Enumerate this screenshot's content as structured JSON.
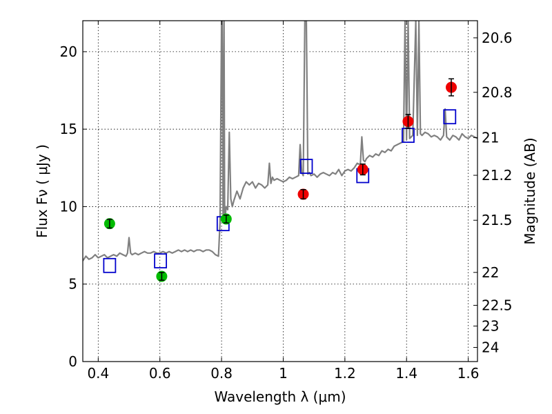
{
  "chart_data": {
    "type": "scatter",
    "xlabel": "Wavelength  λ (μm)",
    "ylabel_left": "Flux  Fν  ( μJy )",
    "ylabel_right": "Magnitude (AB)",
    "xlim": [
      0.35,
      1.63
    ],
    "ylim": [
      0,
      22
    ],
    "grid": true,
    "x_ticks": [
      0.4,
      0.6,
      0.8,
      1.0,
      1.2,
      1.4,
      1.6
    ],
    "x_tick_labels": [
      "0.4",
      "0.6",
      "0.8",
      "1",
      "1.2",
      "1.4",
      "1.6"
    ],
    "y_ticks": [
      0,
      5,
      10,
      15,
      20
    ],
    "y_tick_labels": [
      "0",
      "5",
      "10",
      "15",
      "20"
    ],
    "right_ticks": [
      {
        "label": "20.6",
        "value": 20.6
      },
      {
        "label": "20.8",
        "value": 20.8
      },
      {
        "label": "21",
        "value": 21.0
      },
      {
        "label": "21.2",
        "value": 21.2
      },
      {
        "label": "21.5",
        "value": 21.5
      },
      {
        "label": "22",
        "value": 22.0
      },
      {
        "label": "22.5",
        "value": 22.5
      },
      {
        "label": "23",
        "value": 23.0
      },
      {
        "label": "24",
        "value": 24.0
      }
    ],
    "series": [
      {
        "kind": "line",
        "color": "#808080",
        "x": [
          0.35,
          0.36,
          0.37,
          0.38,
          0.39,
          0.4,
          0.41,
          0.42,
          0.43,
          0.44,
          0.45,
          0.46,
          0.47,
          0.48,
          0.49,
          0.495,
          0.5,
          0.505,
          0.51,
          0.52,
          0.53,
          0.54,
          0.55,
          0.56,
          0.57,
          0.58,
          0.59,
          0.6,
          0.61,
          0.62,
          0.63,
          0.64,
          0.65,
          0.66,
          0.67,
          0.68,
          0.69,
          0.7,
          0.71,
          0.72,
          0.73,
          0.74,
          0.75,
          0.76,
          0.77,
          0.78,
          0.79,
          0.795,
          0.8,
          0.802,
          0.805,
          0.808,
          0.81,
          0.815,
          0.82,
          0.825,
          0.83,
          0.835,
          0.84,
          0.85,
          0.86,
          0.87,
          0.88,
          0.89,
          0.9,
          0.91,
          0.92,
          0.93,
          0.94,
          0.95,
          0.955,
          0.96,
          0.965,
          0.97,
          0.98,
          0.99,
          1.0,
          1.01,
          1.02,
          1.03,
          1.04,
          1.05,
          1.055,
          1.06,
          1.065,
          1.07,
          1.075,
          1.08,
          1.085,
          1.09,
          1.1,
          1.11,
          1.12,
          1.13,
          1.14,
          1.15,
          1.16,
          1.17,
          1.18,
          1.19,
          1.2,
          1.21,
          1.22,
          1.23,
          1.24,
          1.25,
          1.255,
          1.26,
          1.265,
          1.27,
          1.28,
          1.29,
          1.3,
          1.31,
          1.32,
          1.33,
          1.34,
          1.35,
          1.36,
          1.37,
          1.38,
          1.39,
          1.395,
          1.4,
          1.405,
          1.41,
          1.42,
          1.43,
          1.435,
          1.44,
          1.445,
          1.45,
          1.46,
          1.47,
          1.48,
          1.49,
          1.5,
          1.51,
          1.52,
          1.525,
          1.53,
          1.535,
          1.54,
          1.55,
          1.56,
          1.57,
          1.58,
          1.59,
          1.6,
          1.61,
          1.62,
          1.63
        ],
        "y": [
          6.5,
          6.8,
          6.6,
          6.7,
          6.9,
          6.7,
          6.8,
          6.9,
          6.7,
          6.8,
          6.9,
          6.8,
          7.0,
          6.9,
          6.8,
          7.0,
          8.0,
          7.0,
          6.9,
          7.0,
          6.9,
          7.0,
          7.1,
          7.0,
          7.0,
          7.1,
          7.0,
          7.0,
          7.1,
          7.0,
          7.1,
          7.0,
          7.1,
          7.2,
          7.1,
          7.2,
          7.1,
          7.2,
          7.1,
          7.2,
          7.2,
          7.1,
          7.2,
          7.2,
          7.1,
          6.9,
          6.8,
          9.0,
          22.0,
          22.0,
          9.5,
          22.0,
          9.0,
          10.0,
          9.8,
          14.8,
          10.5,
          10.0,
          10.4,
          11.0,
          10.5,
          11.2,
          11.6,
          11.4,
          11.6,
          11.2,
          11.5,
          11.4,
          11.2,
          11.4,
          12.8,
          11.5,
          11.9,
          11.7,
          11.8,
          11.7,
          11.6,
          11.7,
          11.9,
          11.8,
          11.9,
          12.0,
          14.0,
          12.2,
          12.0,
          22.0,
          22.0,
          12.1,
          12.2,
          12.0,
          12.1,
          11.9,
          12.1,
          12.2,
          12.1,
          12.0,
          12.2,
          12.1,
          12.4,
          12.0,
          12.3,
          12.4,
          12.3,
          12.5,
          12.8,
          12.7,
          14.5,
          13.0,
          12.9,
          13.1,
          13.3,
          13.2,
          13.4,
          13.3,
          13.6,
          13.5,
          13.7,
          13.6,
          13.9,
          14.0,
          14.1,
          14.2,
          22.0,
          14.3,
          22.0,
          14.4,
          14.6,
          22.0,
          14.6,
          22.0,
          14.7,
          14.6,
          14.8,
          14.7,
          14.5,
          14.6,
          14.5,
          14.3,
          14.6,
          16.3,
          14.5,
          14.4,
          14.3,
          14.6,
          14.5,
          14.3,
          14.7,
          14.5,
          14.4,
          14.6,
          14.5,
          14.4
        ]
      },
      {
        "kind": "open-square",
        "color": "#0000cc",
        "x": [
          0.437,
          0.602,
          0.805,
          1.075,
          1.258,
          1.405,
          1.54
        ],
        "y": [
          6.2,
          6.5,
          8.9,
          12.6,
          12.0,
          14.6,
          15.8
        ]
      },
      {
        "kind": "point-errorbar",
        "color": "#00bb00",
        "x": [
          0.437,
          0.606,
          0.815
        ],
        "y": [
          8.9,
          5.5,
          9.2
        ],
        "err": [
          0.28,
          0.25,
          0.25
        ]
      },
      {
        "kind": "point-errorbar",
        "color": "#ee0000",
        "x": [
          1.065,
          1.258,
          1.405,
          1.545
        ],
        "y": [
          10.8,
          12.4,
          15.5,
          17.7
        ],
        "err": [
          0.3,
          0.35,
          0.45,
          0.55
        ]
      }
    ]
  }
}
